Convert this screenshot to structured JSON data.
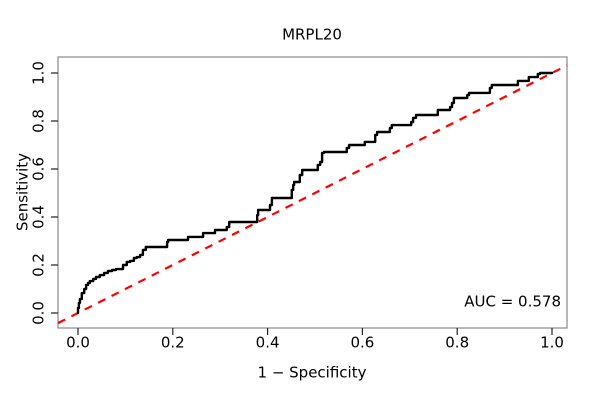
{
  "chart_data": {
    "type": "line",
    "title": "MRPL20",
    "xlabel": "1 − Specificity",
    "ylabel": "Sensitivity",
    "annotation": "AUC = 0.578",
    "auc_value": 0.578,
    "xlim": [
      0,
      1
    ],
    "ylim": [
      0,
      1
    ],
    "grid": false,
    "legend": "none",
    "x_tick_labels": [
      "0.0",
      "0.2",
      "0.4",
      "0.6",
      "0.8",
      "1.0"
    ],
    "x_tick_values": [
      0,
      0.2,
      0.4,
      0.6,
      0.8,
      1.0
    ],
    "y_tick_labels": [
      "0.0",
      "0.2",
      "0.4",
      "0.6",
      "0.8",
      "1.0"
    ],
    "y_tick_values": [
      0,
      0.2,
      0.4,
      0.6,
      0.8,
      1.0
    ],
    "series": [
      {
        "name": "ROC curve",
        "style": "solid-step",
        "color": "#000000",
        "points": [
          [
            0,
            0
          ],
          [
            0.002,
            0.021
          ],
          [
            0.004,
            0.042
          ],
          [
            0.008,
            0.058
          ],
          [
            0.013,
            0.083
          ],
          [
            0.017,
            0.1
          ],
          [
            0.021,
            0.117
          ],
          [
            0.025,
            0.125
          ],
          [
            0.032,
            0.133
          ],
          [
            0.038,
            0.142
          ],
          [
            0.046,
            0.15
          ],
          [
            0.055,
            0.158
          ],
          [
            0.063,
            0.167
          ],
          [
            0.072,
            0.175
          ],
          [
            0.08,
            0.179
          ],
          [
            0.095,
            0.183
          ],
          [
            0.103,
            0.2
          ],
          [
            0.11,
            0.213
          ],
          [
            0.118,
            0.217
          ],
          [
            0.124,
            0.229
          ],
          [
            0.131,
            0.233
          ],
          [
            0.137,
            0.242
          ],
          [
            0.143,
            0.263
          ],
          [
            0.148,
            0.275
          ],
          [
            0.188,
            0.275
          ],
          [
            0.19,
            0.296
          ],
          [
            0.232,
            0.304
          ],
          [
            0.236,
            0.317
          ],
          [
            0.264,
            0.317
          ],
          [
            0.268,
            0.333
          ],
          [
            0.289,
            0.333
          ],
          [
            0.293,
            0.346
          ],
          [
            0.314,
            0.346
          ],
          [
            0.319,
            0.358
          ],
          [
            0.342,
            0.379
          ],
          [
            0.378,
            0.379
          ],
          [
            0.38,
            0.408
          ],
          [
            0.384,
            0.429
          ],
          [
            0.405,
            0.429
          ],
          [
            0.409,
            0.45
          ],
          [
            0.411,
            0.479
          ],
          [
            0.451,
            0.479
          ],
          [
            0.454,
            0.513
          ],
          [
            0.456,
            0.533
          ],
          [
            0.46,
            0.546
          ],
          [
            0.468,
            0.546
          ],
          [
            0.473,
            0.575
          ],
          [
            0.485,
            0.596
          ],
          [
            0.506,
            0.596
          ],
          [
            0.511,
            0.617
          ],
          [
            0.515,
            0.629
          ],
          [
            0.519,
            0.667
          ],
          [
            0.567,
            0.671
          ],
          [
            0.572,
            0.688
          ],
          [
            0.578,
            0.7
          ],
          [
            0.605,
            0.7
          ],
          [
            0.61,
            0.713
          ],
          [
            0.627,
            0.713
          ],
          [
            0.631,
            0.742
          ],
          [
            0.637,
            0.754
          ],
          [
            0.658,
            0.754
          ],
          [
            0.662,
            0.771
          ],
          [
            0.669,
            0.783
          ],
          [
            0.703,
            0.783
          ],
          [
            0.707,
            0.796
          ],
          [
            0.713,
            0.813
          ],
          [
            0.717,
            0.825
          ],
          [
            0.759,
            0.825
          ],
          [
            0.764,
            0.846
          ],
          [
            0.785,
            0.846
          ],
          [
            0.789,
            0.858
          ],
          [
            0.793,
            0.875
          ],
          [
            0.797,
            0.896
          ],
          [
            0.821,
            0.896
          ],
          [
            0.825,
            0.908
          ],
          [
            0.829,
            0.917
          ],
          [
            0.869,
            0.917
          ],
          [
            0.873,
            0.938
          ],
          [
            0.878,
            0.95
          ],
          [
            0.928,
            0.95
          ],
          [
            0.932,
            0.967
          ],
          [
            0.951,
            0.967
          ],
          [
            0.956,
            0.983
          ],
          [
            0.97,
            0.983
          ],
          [
            0.975,
            0.996
          ],
          [
            0.985,
            1
          ],
          [
            1,
            1
          ]
        ]
      },
      {
        "name": "chance reference diagonal",
        "style": "dashed",
        "color": "#FF0000",
        "points": [
          [
            0,
            0
          ],
          [
            1,
            1
          ]
        ]
      }
    ]
  },
  "colors": {
    "background": "#FFFFFF",
    "curve": "#000000",
    "reference": "#FF0000",
    "box": "#888888",
    "tick": "#222222",
    "text": "#000000"
  }
}
